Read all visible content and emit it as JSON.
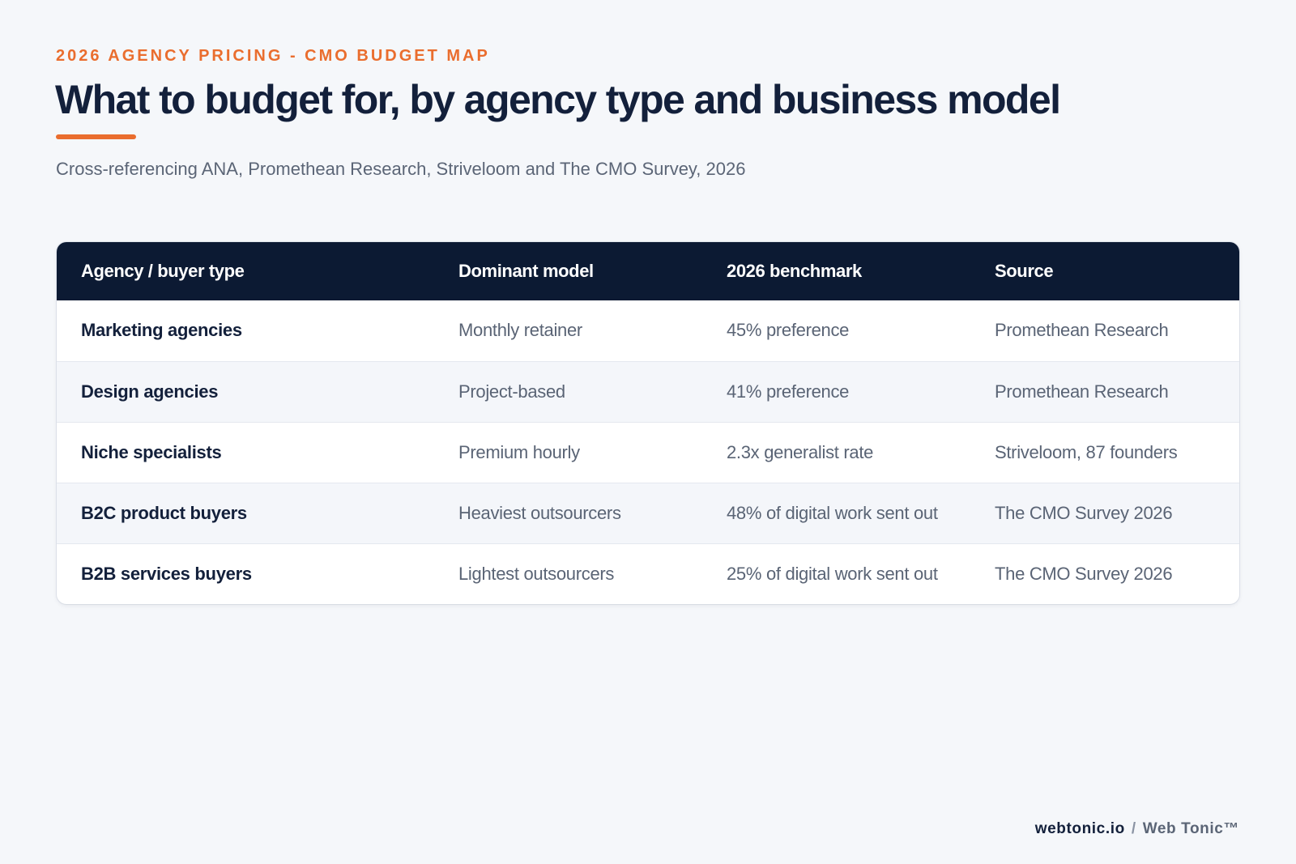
{
  "header": {
    "eyebrow": "2026 AGENCY PRICING - CMO BUDGET MAP",
    "title": "What to budget for, by agency type and business model",
    "subtitle": "Cross-referencing ANA, Promethean Research, Striveloom and The CMO Survey, 2026"
  },
  "table": {
    "columns": [
      "Agency / buyer type",
      "Dominant model",
      "2026 benchmark",
      "Source"
    ],
    "rows": [
      {
        "type": "Marketing agencies",
        "model": "Monthly retainer",
        "benchmark": "45% preference",
        "source": "Promethean Research"
      },
      {
        "type": "Design agencies",
        "model": "Project-based",
        "benchmark": "41% preference",
        "source": "Promethean Research"
      },
      {
        "type": "Niche specialists",
        "model": "Premium hourly",
        "benchmark": "2.3x generalist rate",
        "source": "Striveloom, 87 founders"
      },
      {
        "type": "B2C product buyers",
        "model": "Heaviest outsourcers",
        "benchmark": "48% of digital work sent out",
        "source": "The CMO Survey 2026"
      },
      {
        "type": "B2B services buyers",
        "model": "Lightest outsourcers",
        "benchmark": "25% of digital work sent out",
        "source": "The CMO Survey 2026"
      }
    ]
  },
  "footer": {
    "domain": "webtonic.io",
    "separator": "/",
    "brand": "Web Tonic™"
  },
  "colors": {
    "accent": "#ea6d2e",
    "navy": "#0c1a33",
    "background": "#f5f7fa"
  }
}
